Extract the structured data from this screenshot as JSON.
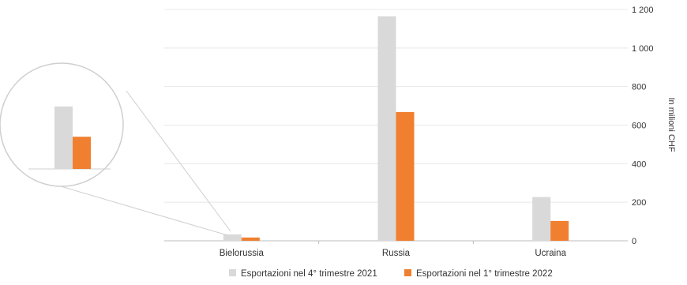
{
  "chart_data": {
    "type": "bar",
    "categories": [
      "Bielorussia",
      "Russia",
      "Ucraina"
    ],
    "series": [
      {
        "name": "Esportazioni nel 4° trimestre 2021",
        "color": "#d9d9d9",
        "values": [
          33,
          1165,
          227
        ]
      },
      {
        "name": "Esportazioni nel 1° trimestre 2022",
        "color": "#f08030",
        "values": [
          17,
          668,
          103
        ]
      }
    ],
    "y_ticks": [
      "0",
      "200",
      "400",
      "600",
      "800",
      "1 000",
      "1 200"
    ],
    "ylim": [
      0,
      1200
    ],
    "ylabel": "In milioni CHF",
    "y_axis_side": "right",
    "grid": true,
    "legend_position": "bottom-center",
    "zoom_inset": "magnifier on Bielorussia bars"
  }
}
